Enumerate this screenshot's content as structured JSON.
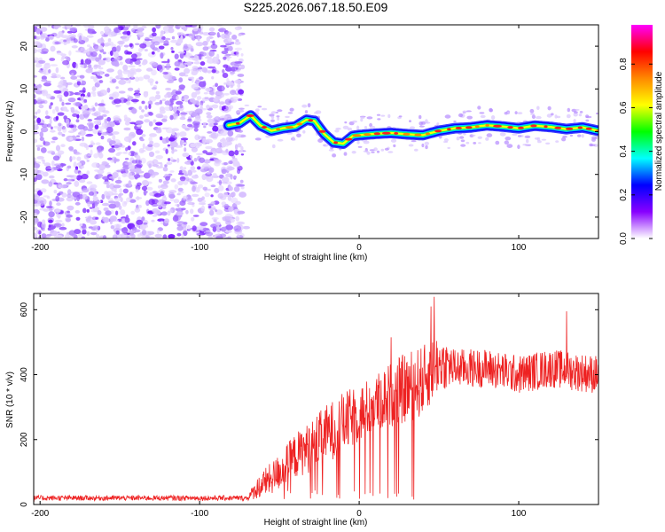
{
  "title": "S225.2026.067.18.50.E09",
  "chart_data": [
    {
      "type": "heatmap",
      "xlabel": "Height of straight line (km)",
      "ylabel": "Frequency (Hz)",
      "xlim": [
        -204,
        150
      ],
      "ylim": [
        -25,
        25
      ],
      "xticks": [
        -200,
        -100,
        0,
        100
      ],
      "yticks": [
        -20,
        -10,
        0,
        10,
        20
      ],
      "xtick_labels": [
        "-200",
        "-100",
        "0",
        "100"
      ],
      "ytick_labels": [
        "-20",
        "-10",
        "0",
        "10",
        "20"
      ],
      "noise_region_x": [
        -204,
        -73
      ],
      "signal_ridge": {
        "x": [
          -82,
          -75,
          -68,
          -62,
          -55,
          -48,
          -40,
          -33,
          -28,
          -22,
          -16,
          -10,
          -4,
          0,
          10,
          20,
          30,
          40,
          50,
          60,
          70,
          80,
          90,
          100,
          110,
          120,
          130,
          140,
          150
        ],
        "freq": [
          1.5,
          2.0,
          3.8,
          1.5,
          0.2,
          0.8,
          1.2,
          2.8,
          2.5,
          -0.5,
          -2.5,
          -2.8,
          -1.0,
          -0.8,
          -0.5,
          -0.3,
          -0.6,
          -0.8,
          0.2,
          0.8,
          1.0,
          1.5,
          1.2,
          0.8,
          1.4,
          1.1,
          0.6,
          1.0,
          0.2
        ]
      },
      "colorbar": {
        "label": "Normalized spectral amplitude",
        "ticks": [
          "0.0",
          "0.2",
          "0.4",
          "0.6",
          "0.8"
        ],
        "colors": [
          "#ffffff",
          "#8800ff",
          "#0000ff",
          "#00ffff",
          "#00ff00",
          "#ffff00",
          "#ff8800",
          "#ff0000",
          "#ff00ff"
        ]
      }
    },
    {
      "type": "line",
      "xlabel": "Height of straight line (km)",
      "ylabel": "SNR (10 * v/v)",
      "xlim": [
        -204,
        150
      ],
      "ylim": [
        0,
        650
      ],
      "xticks": [
        -200,
        -100,
        0,
        100
      ],
      "yticks": [
        0,
        200,
        400,
        600
      ],
      "xtick_labels": [
        "-200",
        "-100",
        "0",
        "100"
      ],
      "ytick_labels": [
        "0",
        "200",
        "400",
        "600"
      ],
      "color": "#ee2222",
      "series": [
        {
          "name": "SNR",
          "envelope_x": [
            -204,
            -70,
            -62,
            -55,
            -48,
            -40,
            -30,
            -20,
            -10,
            0,
            10,
            20,
            30,
            40,
            50,
            60,
            80,
            100,
            120,
            150
          ],
          "envelope_mean": [
            20,
            20,
            60,
            80,
            110,
            150,
            180,
            220,
            250,
            280,
            310,
            340,
            360,
            380,
            440,
            420,
            420,
            400,
            420,
            400
          ],
          "envelope_spread": [
            8,
            8,
            40,
            50,
            60,
            70,
            80,
            90,
            95,
            90,
            90,
            100,
            110,
            110,
            90,
            60,
            60,
            60,
            60,
            60
          ],
          "peaks": [
            {
              "x": 47,
              "y": 640
            },
            {
              "x": 45,
              "y": 610
            },
            {
              "x": 130,
              "y": 595
            },
            {
              "x": 20,
              "y": 515
            }
          ]
        }
      ]
    }
  ]
}
